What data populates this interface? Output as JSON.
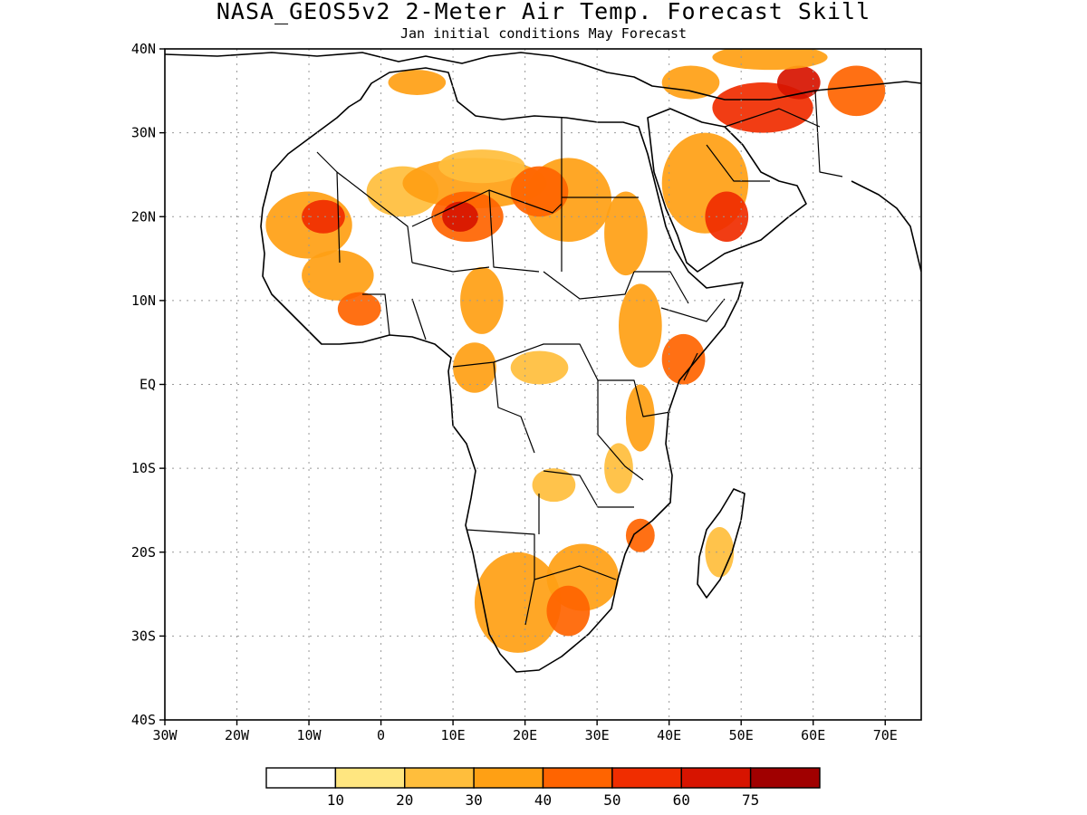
{
  "title": "NASA_GEOS5v2 2-Meter Air Temp. Forecast Skill",
  "subtitle": "Jan initial conditions  May Forecast",
  "map": {
    "lon_range": [
      -30,
      75
    ],
    "lat_range": [
      -40,
      40
    ],
    "x_ticks": [
      {
        "lon": -30,
        "label": "30W"
      },
      {
        "lon": -20,
        "label": "20W"
      },
      {
        "lon": -10,
        "label": "10W"
      },
      {
        "lon": 0,
        "label": "0"
      },
      {
        "lon": 10,
        "label": "10E"
      },
      {
        "lon": 20,
        "label": "20E"
      },
      {
        "lon": 30,
        "label": "30E"
      },
      {
        "lon": 40,
        "label": "40E"
      },
      {
        "lon": 50,
        "label": "50E"
      },
      {
        "lon": 60,
        "label": "60E"
      },
      {
        "lon": 70,
        "label": "70E"
      }
    ],
    "y_ticks": [
      {
        "lat": 40,
        "label": "40N"
      },
      {
        "lat": 30,
        "label": "30N"
      },
      {
        "lat": 20,
        "label": "20N"
      },
      {
        "lat": 10,
        "label": "10N"
      },
      {
        "lat": 0,
        "label": "EQ"
      },
      {
        "lat": -10,
        "label": "10S"
      },
      {
        "lat": -20,
        "label": "20S"
      },
      {
        "lat": -30,
        "label": "30S"
      },
      {
        "lat": -40,
        "label": "40S"
      }
    ],
    "grid": "dotted",
    "skill_regions": [
      {
        "level": 30,
        "lon": -10,
        "lat": 19,
        "rx": 6,
        "ry": 4
      },
      {
        "level": 50,
        "lon": -8,
        "lat": 20,
        "rx": 3,
        "ry": 2
      },
      {
        "level": 30,
        "lon": -6,
        "lat": 13,
        "rx": 5,
        "ry": 3
      },
      {
        "level": 40,
        "lon": -3,
        "lat": 9,
        "rx": 3,
        "ry": 2
      },
      {
        "level": 20,
        "lon": 3,
        "lat": 23,
        "rx": 5,
        "ry": 3
      },
      {
        "level": 30,
        "lon": 13,
        "lat": 24,
        "rx": 10,
        "ry": 3
      },
      {
        "level": 40,
        "lon": 12,
        "lat": 20,
        "rx": 5,
        "ry": 3
      },
      {
        "level": 60,
        "lon": 11,
        "lat": 20,
        "rx": 2.5,
        "ry": 1.8
      },
      {
        "level": 20,
        "lon": 14,
        "lat": 26,
        "rx": 6,
        "ry": 2
      },
      {
        "level": 30,
        "lon": 26,
        "lat": 22,
        "rx": 6,
        "ry": 5
      },
      {
        "level": 40,
        "lon": 22,
        "lat": 23,
        "rx": 4,
        "ry": 3
      },
      {
        "level": 30,
        "lon": 34,
        "lat": 18,
        "rx": 3,
        "ry": 5
      },
      {
        "level": 30,
        "lon": 5,
        "lat": 36,
        "rx": 4,
        "ry": 1.5
      },
      {
        "level": 30,
        "lon": 14,
        "lat": 10,
        "rx": 3,
        "ry": 4
      },
      {
        "level": 30,
        "lon": 13,
        "lat": 2,
        "rx": 3,
        "ry": 3
      },
      {
        "level": 20,
        "lon": 22,
        "lat": 2,
        "rx": 4,
        "ry": 2
      },
      {
        "level": 30,
        "lon": 36,
        "lat": 7,
        "rx": 3,
        "ry": 5
      },
      {
        "level": 40,
        "lon": 42,
        "lat": 3,
        "rx": 3,
        "ry": 3
      },
      {
        "level": 30,
        "lon": 36,
        "lat": -4,
        "rx": 2,
        "ry": 4
      },
      {
        "level": 20,
        "lon": 24,
        "lat": -12,
        "rx": 3,
        "ry": 2
      },
      {
        "level": 20,
        "lon": 33,
        "lat": -10,
        "rx": 2,
        "ry": 3
      },
      {
        "level": 30,
        "lon": 19,
        "lat": -26,
        "rx": 6,
        "ry": 6
      },
      {
        "level": 30,
        "lon": 28,
        "lat": -23,
        "rx": 5,
        "ry": 4
      },
      {
        "level": 40,
        "lon": 26,
        "lat": -27,
        "rx": 3,
        "ry": 3
      },
      {
        "level": 40,
        "lon": 36,
        "lat": -18,
        "rx": 2,
        "ry": 2
      },
      {
        "level": 20,
        "lon": 47,
        "lat": -20,
        "rx": 2,
        "ry": 3
      },
      {
        "level": 30,
        "lon": 45,
        "lat": 24,
        "rx": 6,
        "ry": 6
      },
      {
        "level": 50,
        "lon": 48,
        "lat": 20,
        "rx": 3,
        "ry": 3
      },
      {
        "level": 50,
        "lon": 53,
        "lat": 33,
        "rx": 7,
        "ry": 3
      },
      {
        "level": 60,
        "lon": 58,
        "lat": 36,
        "rx": 3,
        "ry": 2
      },
      {
        "level": 40,
        "lon": 66,
        "lat": 35,
        "rx": 4,
        "ry": 3
      },
      {
        "level": 30,
        "lon": 43,
        "lat": 36,
        "rx": 4,
        "ry": 2
      },
      {
        "level": 30,
        "lon": 54,
        "lat": 39,
        "rx": 8,
        "ry": 1.5
      }
    ]
  },
  "colorbar": {
    "colors": [
      "#ffffff",
      "#ffe680",
      "#ffbe3c",
      "#ffa014",
      "#ff6400",
      "#f02d00",
      "#d71400",
      "#a00000"
    ],
    "labels": [
      "10",
      "20",
      "30",
      "40",
      "50",
      "60",
      "75"
    ]
  }
}
